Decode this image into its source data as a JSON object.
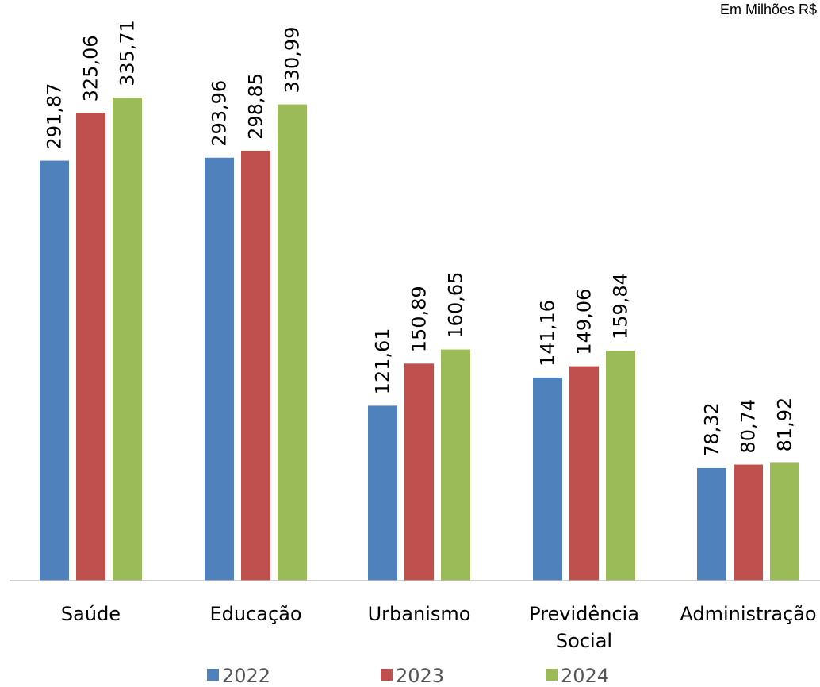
{
  "unit_note": "Em Milhões R$",
  "colors": {
    "2022": "#4F81BD",
    "2023": "#C0504D",
    "2024": "#9BBB59",
    "axis": "#BFBFBF"
  },
  "chart_data": {
    "type": "bar",
    "categories": [
      "Saúde",
      "Educação",
      "Urbanismo",
      "Previdência Social",
      "Administração"
    ],
    "category_lines": [
      [
        "Saúde"
      ],
      [
        "Educação"
      ],
      [
        "Urbanismo"
      ],
      [
        "Previdência",
        "Social"
      ],
      [
        "Administração"
      ]
    ],
    "series": [
      {
        "name": "2022",
        "values": [
          291.87,
          293.96,
          121.61,
          141.16,
          78.32
        ],
        "labels": [
          "291,87",
          "293,96",
          "121,61",
          "141,16",
          "78,32"
        ]
      },
      {
        "name": "2023",
        "values": [
          325.06,
          298.85,
          150.89,
          149.06,
          80.74
        ],
        "labels": [
          "325,06",
          "298,85",
          "150,89",
          "149,06",
          "80,74"
        ]
      },
      {
        "name": "2024",
        "values": [
          335.71,
          330.99,
          160.65,
          159.84,
          81.92
        ],
        "labels": [
          "335,71",
          "330,99",
          "160,65",
          "159,84",
          "81,92"
        ]
      }
    ],
    "ylim": [
      0,
      344
    ],
    "grid": false,
    "legend_position": "bottom"
  }
}
